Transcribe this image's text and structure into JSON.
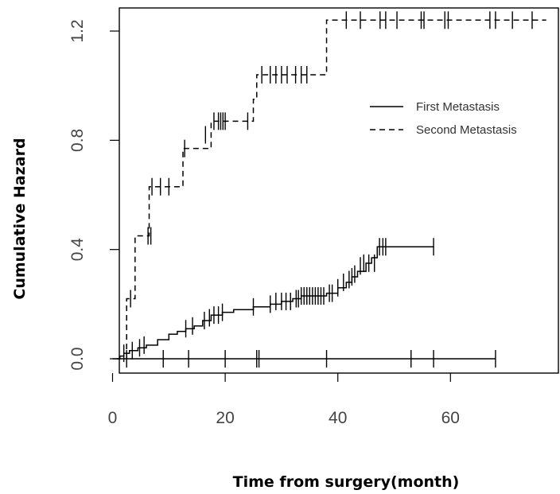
{
  "chart_data": {
    "type": "line",
    "title": "",
    "xlabel": "Time from surgery(month)",
    "ylabel": "Cumulative Hazard",
    "xlim": [
      0,
      77
    ],
    "ylim": [
      -0.06,
      1.28
    ],
    "xticks": [
      0,
      20,
      40,
      60
    ],
    "xtick_labels": [
      "0",
      "20",
      "40",
      "60"
    ],
    "yticks": [
      0.0,
      0.4,
      0.8,
      1.2
    ],
    "ytick_labels": [
      "0.0",
      "0.4",
      "0.8",
      "1.2"
    ],
    "legend_position": "right",
    "grid": false,
    "series": [
      {
        "name": "First Metastasis",
        "line_style": "solid",
        "steps": [
          [
            0.8,
            0.0
          ],
          [
            1.3,
            0.01
          ],
          [
            2.0,
            0.02
          ],
          [
            3.0,
            0.03
          ],
          [
            4.5,
            0.04
          ],
          [
            6.0,
            0.05
          ],
          [
            8.0,
            0.07
          ],
          [
            10.0,
            0.09
          ],
          [
            11.5,
            0.1
          ],
          [
            13.0,
            0.11
          ],
          [
            14.5,
            0.12
          ],
          [
            16.0,
            0.14
          ],
          [
            17.5,
            0.16
          ],
          [
            19.5,
            0.17
          ],
          [
            21.5,
            0.18
          ],
          [
            25.0,
            0.19
          ],
          [
            28.0,
            0.2
          ],
          [
            30.0,
            0.21
          ],
          [
            32.0,
            0.22
          ],
          [
            33.5,
            0.23
          ],
          [
            38.0,
            0.24
          ],
          [
            40.0,
            0.26
          ],
          [
            41.5,
            0.28
          ],
          [
            42.5,
            0.3
          ],
          [
            43.5,
            0.32
          ],
          [
            45.0,
            0.35
          ],
          [
            46.0,
            0.37
          ],
          [
            47.0,
            0.41
          ]
        ],
        "end_x": 57,
        "censored": [
          [
            2.0,
            0.02
          ],
          [
            3.5,
            0.03
          ],
          [
            4.8,
            0.04
          ],
          [
            5.6,
            0.05
          ],
          [
            13.0,
            0.11
          ],
          [
            14.2,
            0.12
          ],
          [
            16.3,
            0.14
          ],
          [
            17.2,
            0.15
          ],
          [
            18.0,
            0.16
          ],
          [
            18.8,
            0.16
          ],
          [
            19.5,
            0.17
          ],
          [
            25.0,
            0.19
          ],
          [
            28.0,
            0.2
          ],
          [
            29.0,
            0.21
          ],
          [
            30.0,
            0.21
          ],
          [
            30.8,
            0.21
          ],
          [
            31.6,
            0.21
          ],
          [
            32.6,
            0.22
          ],
          [
            33.0,
            0.22
          ],
          [
            33.5,
            0.23
          ],
          [
            34.0,
            0.23
          ],
          [
            34.5,
            0.23
          ],
          [
            35.0,
            0.23
          ],
          [
            35.5,
            0.23
          ],
          [
            36.0,
            0.23
          ],
          [
            36.5,
            0.23
          ],
          [
            37.0,
            0.23
          ],
          [
            37.5,
            0.23
          ],
          [
            38.5,
            0.24
          ],
          [
            39.0,
            0.24
          ],
          [
            40.0,
            0.26
          ],
          [
            41.0,
            0.28
          ],
          [
            42.0,
            0.29
          ],
          [
            42.5,
            0.3
          ],
          [
            43.0,
            0.31
          ],
          [
            44.0,
            0.34
          ],
          [
            44.6,
            0.35
          ],
          [
            45.5,
            0.35
          ],
          [
            46.5,
            0.35
          ],
          [
            47.4,
            0.41
          ],
          [
            48.0,
            0.41
          ],
          [
            48.5,
            0.41
          ],
          [
            57.0,
            0.41
          ]
        ]
      },
      {
        "name": "Second Metastasis",
        "line_style": "dashed",
        "steps": [
          [
            2.5,
            0.0
          ],
          [
            2.5,
            0.22
          ],
          [
            4.0,
            0.45
          ],
          [
            6.5,
            0.63
          ],
          [
            12.5,
            0.77
          ],
          [
            17.5,
            0.87
          ],
          [
            25.0,
            0.95
          ],
          [
            25.6,
            1.04
          ],
          [
            38.0,
            1.24
          ]
        ],
        "end_x": 77,
        "censored": [
          [
            3.2,
            0.22
          ],
          [
            6.3,
            0.45
          ],
          [
            6.8,
            0.45
          ],
          [
            7.0,
            0.63
          ],
          [
            8.5,
            0.63
          ],
          [
            10.0,
            0.63
          ],
          [
            12.8,
            0.77
          ],
          [
            16.5,
            0.82
          ],
          [
            18.0,
            0.87
          ],
          [
            18.8,
            0.87
          ],
          [
            19.2,
            0.87
          ],
          [
            19.6,
            0.87
          ],
          [
            20.0,
            0.87
          ],
          [
            24.0,
            0.87
          ],
          [
            26.5,
            1.04
          ],
          [
            28.0,
            1.04
          ],
          [
            29.0,
            1.04
          ],
          [
            30.0,
            1.04
          ],
          [
            31.0,
            1.04
          ],
          [
            32.5,
            1.04
          ],
          [
            33.5,
            1.04
          ],
          [
            34.5,
            1.04
          ],
          [
            41.5,
            1.24
          ],
          [
            44.0,
            1.24
          ],
          [
            47.5,
            1.24
          ],
          [
            48.5,
            1.24
          ],
          [
            50.5,
            1.24
          ],
          [
            54.8,
            1.24
          ],
          [
            55.3,
            1.24
          ],
          [
            59.0,
            1.24
          ],
          [
            59.6,
            1.24
          ],
          [
            67.0,
            1.24
          ],
          [
            68.0,
            1.24
          ],
          [
            71.0,
            1.24
          ],
          [
            74.5,
            1.24
          ]
        ]
      },
      {
        "line_style": "solid",
        "steps": [
          [
            0.0,
            0.0
          ]
        ],
        "end_x": 68,
        "censored": [
          [
            2.5,
            0.0
          ],
          [
            9.0,
            0.0
          ],
          [
            13.5,
            0.0
          ],
          [
            20.0,
            0.0
          ],
          [
            25.6,
            0.0
          ],
          [
            26.0,
            0.0
          ],
          [
            38.0,
            0.0
          ],
          [
            53.0,
            0.0
          ],
          [
            57.0,
            0.0
          ],
          [
            68.0,
            0.0
          ]
        ]
      }
    ],
    "legend": [
      {
        "label": "First Metastasis",
        "line_style": "solid"
      },
      {
        "label": "Second Metastasis",
        "line_style": "dashed"
      }
    ]
  }
}
